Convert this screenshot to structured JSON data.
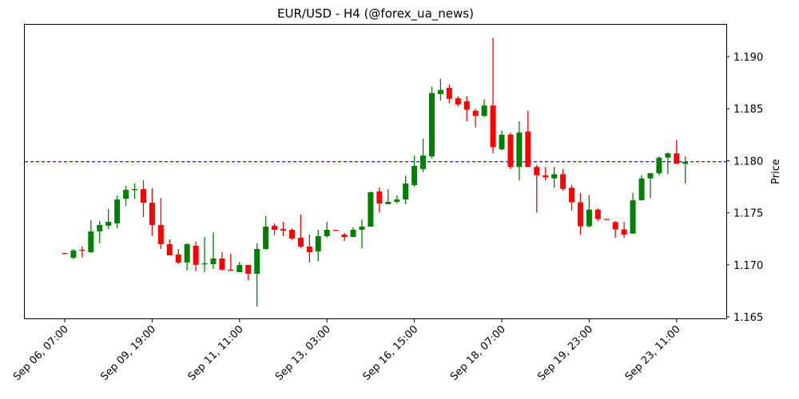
{
  "chart_data": {
    "type": "candlestick",
    "title": "EUR/USD - H4 (@forex_ua_news)",
    "xlabel": "",
    "ylabel": "Price",
    "ylim": [
      1.1646,
      1.1932
    ],
    "y_ticks": [
      "1.165",
      "1.170",
      "1.175",
      "1.180",
      "1.185",
      "1.190"
    ],
    "y_tick_values": [
      1.165,
      1.17,
      1.175,
      1.18,
      1.185,
      1.19
    ],
    "x_ticks": [
      {
        "label": "Sep 06, 07:00",
        "index": 0
      },
      {
        "label": "Sep 09, 19:00",
        "index": 10
      },
      {
        "label": "Sep 11, 11:00",
        "index": 20
      },
      {
        "label": "Sep 13, 03:00",
        "index": 30
      },
      {
        "label": "Sep 16, 15:00",
        "index": 40
      },
      {
        "label": "Sep 18, 07:00",
        "index": 50
      },
      {
        "label": "Sep 19, 23:00",
        "index": 60
      },
      {
        "label": "Sep 23, 11:00",
        "index": 70
      }
    ],
    "reference_line": {
      "value": 1.1799,
      "color": "#0000cc",
      "style": "dashed"
    },
    "grid": false,
    "colors": {
      "up": "#008000",
      "down": "#ff0000"
    },
    "candles": [
      {
        "o": 1.17113,
        "h": 1.17113,
        "l": 1.17106,
        "c": 1.17106
      },
      {
        "o": 1.17068,
        "h": 1.17152,
        "l": 1.17052,
        "c": 1.17137
      },
      {
        "o": 1.17144,
        "h": 1.17175,
        "l": 1.17068,
        "c": 1.17137
      },
      {
        "o": 1.17121,
        "h": 1.17428,
        "l": 1.17114,
        "c": 1.17321
      },
      {
        "o": 1.17321,
        "h": 1.17421,
        "l": 1.17206,
        "c": 1.17382
      },
      {
        "o": 1.17375,
        "h": 1.17536,
        "l": 1.17344,
        "c": 1.17413
      },
      {
        "o": 1.17398,
        "h": 1.17666,
        "l": 1.17352,
        "c": 1.17628
      },
      {
        "o": 1.17635,
        "h": 1.17758,
        "l": 1.17566,
        "c": 1.1772
      },
      {
        "o": 1.1772,
        "h": 1.17781,
        "l": 1.17635,
        "c": 1.17727
      },
      {
        "o": 1.17727,
        "h": 1.17812,
        "l": 1.17459,
        "c": 1.17597
      },
      {
        "o": 1.17597,
        "h": 1.17735,
        "l": 1.17275,
        "c": 1.17382
      },
      {
        "o": 1.17382,
        "h": 1.17643,
        "l": 1.17152,
        "c": 1.17198
      },
      {
        "o": 1.17198,
        "h": 1.17244,
        "l": 1.17106,
        "c": 1.17091
      },
      {
        "o": 1.17098,
        "h": 1.17152,
        "l": 1.17006,
        "c": 1.17022
      },
      {
        "o": 1.17022,
        "h": 1.17206,
        "l": 1.16945,
        "c": 1.17198
      },
      {
        "o": 1.17183,
        "h": 1.17221,
        "l": 1.16937,
        "c": 1.17
      },
      {
        "o": 1.17006,
        "h": 1.17267,
        "l": 1.16929,
        "c": 1.17014
      },
      {
        "o": 1.17006,
        "h": 1.17313,
        "l": 1.1696,
        "c": 1.1706
      },
      {
        "o": 1.1706,
        "h": 1.17121,
        "l": 1.16945,
        "c": 1.16952
      },
      {
        "o": 1.16952,
        "h": 1.17106,
        "l": 1.16945,
        "c": 1.16945
      },
      {
        "o": 1.16929,
        "h": 1.17029,
        "l": 1.16929,
        "c": 1.16998
      },
      {
        "o": 1.16998,
        "h": 1.16998,
        "l": 1.16853,
        "c": 1.16914
      },
      {
        "o": 1.16914,
        "h": 1.17206,
        "l": 1.16601,
        "c": 1.17152
      },
      {
        "o": 1.17152,
        "h": 1.17467,
        "l": 1.17144,
        "c": 1.17367
      },
      {
        "o": 1.17375,
        "h": 1.17398,
        "l": 1.17283,
        "c": 1.17336
      },
      {
        "o": 1.17344,
        "h": 1.17413,
        "l": 1.17275,
        "c": 1.17329
      },
      {
        "o": 1.17336,
        "h": 1.17352,
        "l": 1.17237,
        "c": 1.17252
      },
      {
        "o": 1.1726,
        "h": 1.17482,
        "l": 1.1716,
        "c": 1.17175
      },
      {
        "o": 1.17175,
        "h": 1.1729,
        "l": 1.17022,
        "c": 1.17121
      },
      {
        "o": 1.17129,
        "h": 1.17336,
        "l": 1.17037,
        "c": 1.17275
      },
      {
        "o": 1.17275,
        "h": 1.17413,
        "l": 1.1726,
        "c": 1.17336
      },
      {
        "o": 1.17336,
        "h": 1.17336,
        "l": 1.17329,
        "c": 1.17329
      },
      {
        "o": 1.1729,
        "h": 1.17306,
        "l": 1.17229,
        "c": 1.17267
      },
      {
        "o": 1.17267,
        "h": 1.17359,
        "l": 1.17267,
        "c": 1.17336
      },
      {
        "o": 1.17336,
        "h": 1.17436,
        "l": 1.1716,
        "c": 1.17367
      },
      {
        "o": 1.17367,
        "h": 1.17705,
        "l": 1.17367,
        "c": 1.17697
      },
      {
        "o": 1.17705,
        "h": 1.17743,
        "l": 1.17505,
        "c": 1.17589
      },
      {
        "o": 1.17582,
        "h": 1.17728,
        "l": 1.17582,
        "c": 1.17605
      },
      {
        "o": 1.17605,
        "h": 1.17666,
        "l": 1.1759,
        "c": 1.17628
      },
      {
        "o": 1.17628,
        "h": 1.17858,
        "l": 1.17582,
        "c": 1.17781
      },
      {
        "o": 1.17766,
        "h": 1.1805,
        "l": 1.1775,
        "c": 1.1795
      },
      {
        "o": 1.1792,
        "h": 1.18212,
        "l": 1.1789,
        "c": 1.1805
      },
      {
        "o": 1.18042,
        "h": 1.1871,
        "l": 1.1802,
        "c": 1.1865
      },
      {
        "o": 1.1864,
        "h": 1.18787,
        "l": 1.1858,
        "c": 1.1868
      },
      {
        "o": 1.187,
        "h": 1.1873,
        "l": 1.1855,
        "c": 1.18595
      },
      {
        "o": 1.186,
        "h": 1.1862,
        "l": 1.1852,
        "c": 1.1854
      },
      {
        "o": 1.1857,
        "h": 1.1862,
        "l": 1.1838,
        "c": 1.1849
      },
      {
        "o": 1.1848,
        "h": 1.185,
        "l": 1.1832,
        "c": 1.1843
      },
      {
        "o": 1.1843,
        "h": 1.1859,
        "l": 1.1842,
        "c": 1.1853
      },
      {
        "o": 1.1853,
        "h": 1.1918,
        "l": 1.1807,
        "c": 1.1813
      },
      {
        "o": 1.1811,
        "h": 1.1829,
        "l": 1.181,
        "c": 1.1825
      },
      {
        "o": 1.1825,
        "h": 1.1827,
        "l": 1.1792,
        "c": 1.1794
      },
      {
        "o": 1.1794,
        "h": 1.1838,
        "l": 1.1781,
        "c": 1.1827
      },
      {
        "o": 1.1828,
        "h": 1.1848,
        "l": 1.1794,
        "c": 1.1794
      },
      {
        "o": 1.1794,
        "h": 1.1796,
        "l": 1.175,
        "c": 1.1786
      },
      {
        "o": 1.1786,
        "h": 1.1794,
        "l": 1.1781,
        "c": 1.1784
      },
      {
        "o": 1.1783,
        "h": 1.1794,
        "l": 1.1774,
        "c": 1.1787
      },
      {
        "o": 1.1787,
        "h": 1.1792,
        "l": 1.1771,
        "c": 1.1773
      },
      {
        "o": 1.1774,
        "h": 1.1777,
        "l": 1.1752,
        "c": 1.176
      },
      {
        "o": 1.176,
        "h": 1.1769,
        "l": 1.1729,
        "c": 1.1737
      },
      {
        "o": 1.1737,
        "h": 1.1767,
        "l": 1.1736,
        "c": 1.1753
      },
      {
        "o": 1.1753,
        "h": 1.1754,
        "l": 1.1742,
        "c": 1.1744
      },
      {
        "o": 1.1744,
        "h": 1.1744,
        "l": 1.1743,
        "c": 1.1743
      },
      {
        "o": 1.1741,
        "h": 1.1742,
        "l": 1.1726,
        "c": 1.1734
      },
      {
        "o": 1.1734,
        "h": 1.1741,
        "l": 1.1726,
        "c": 1.1729
      },
      {
        "o": 1.173,
        "h": 1.1769,
        "l": 1.173,
        "c": 1.1762
      },
      {
        "o": 1.1762,
        "h": 1.1786,
        "l": 1.1762,
        "c": 1.1783
      },
      {
        "o": 1.1783,
        "h": 1.1788,
        "l": 1.1764,
        "c": 1.1788
      },
      {
        "o": 1.1788,
        "h": 1.1804,
        "l": 1.1786,
        "c": 1.1803
      },
      {
        "o": 1.1803,
        "h": 1.1808,
        "l": 1.1787,
        "c": 1.1807
      },
      {
        "o": 1.1807,
        "h": 1.182,
        "l": 1.1798,
        "c": 1.1797
      },
      {
        "o": 1.1797,
        "h": 1.1804,
        "l": 1.1778,
        "c": 1.1799
      }
    ]
  }
}
